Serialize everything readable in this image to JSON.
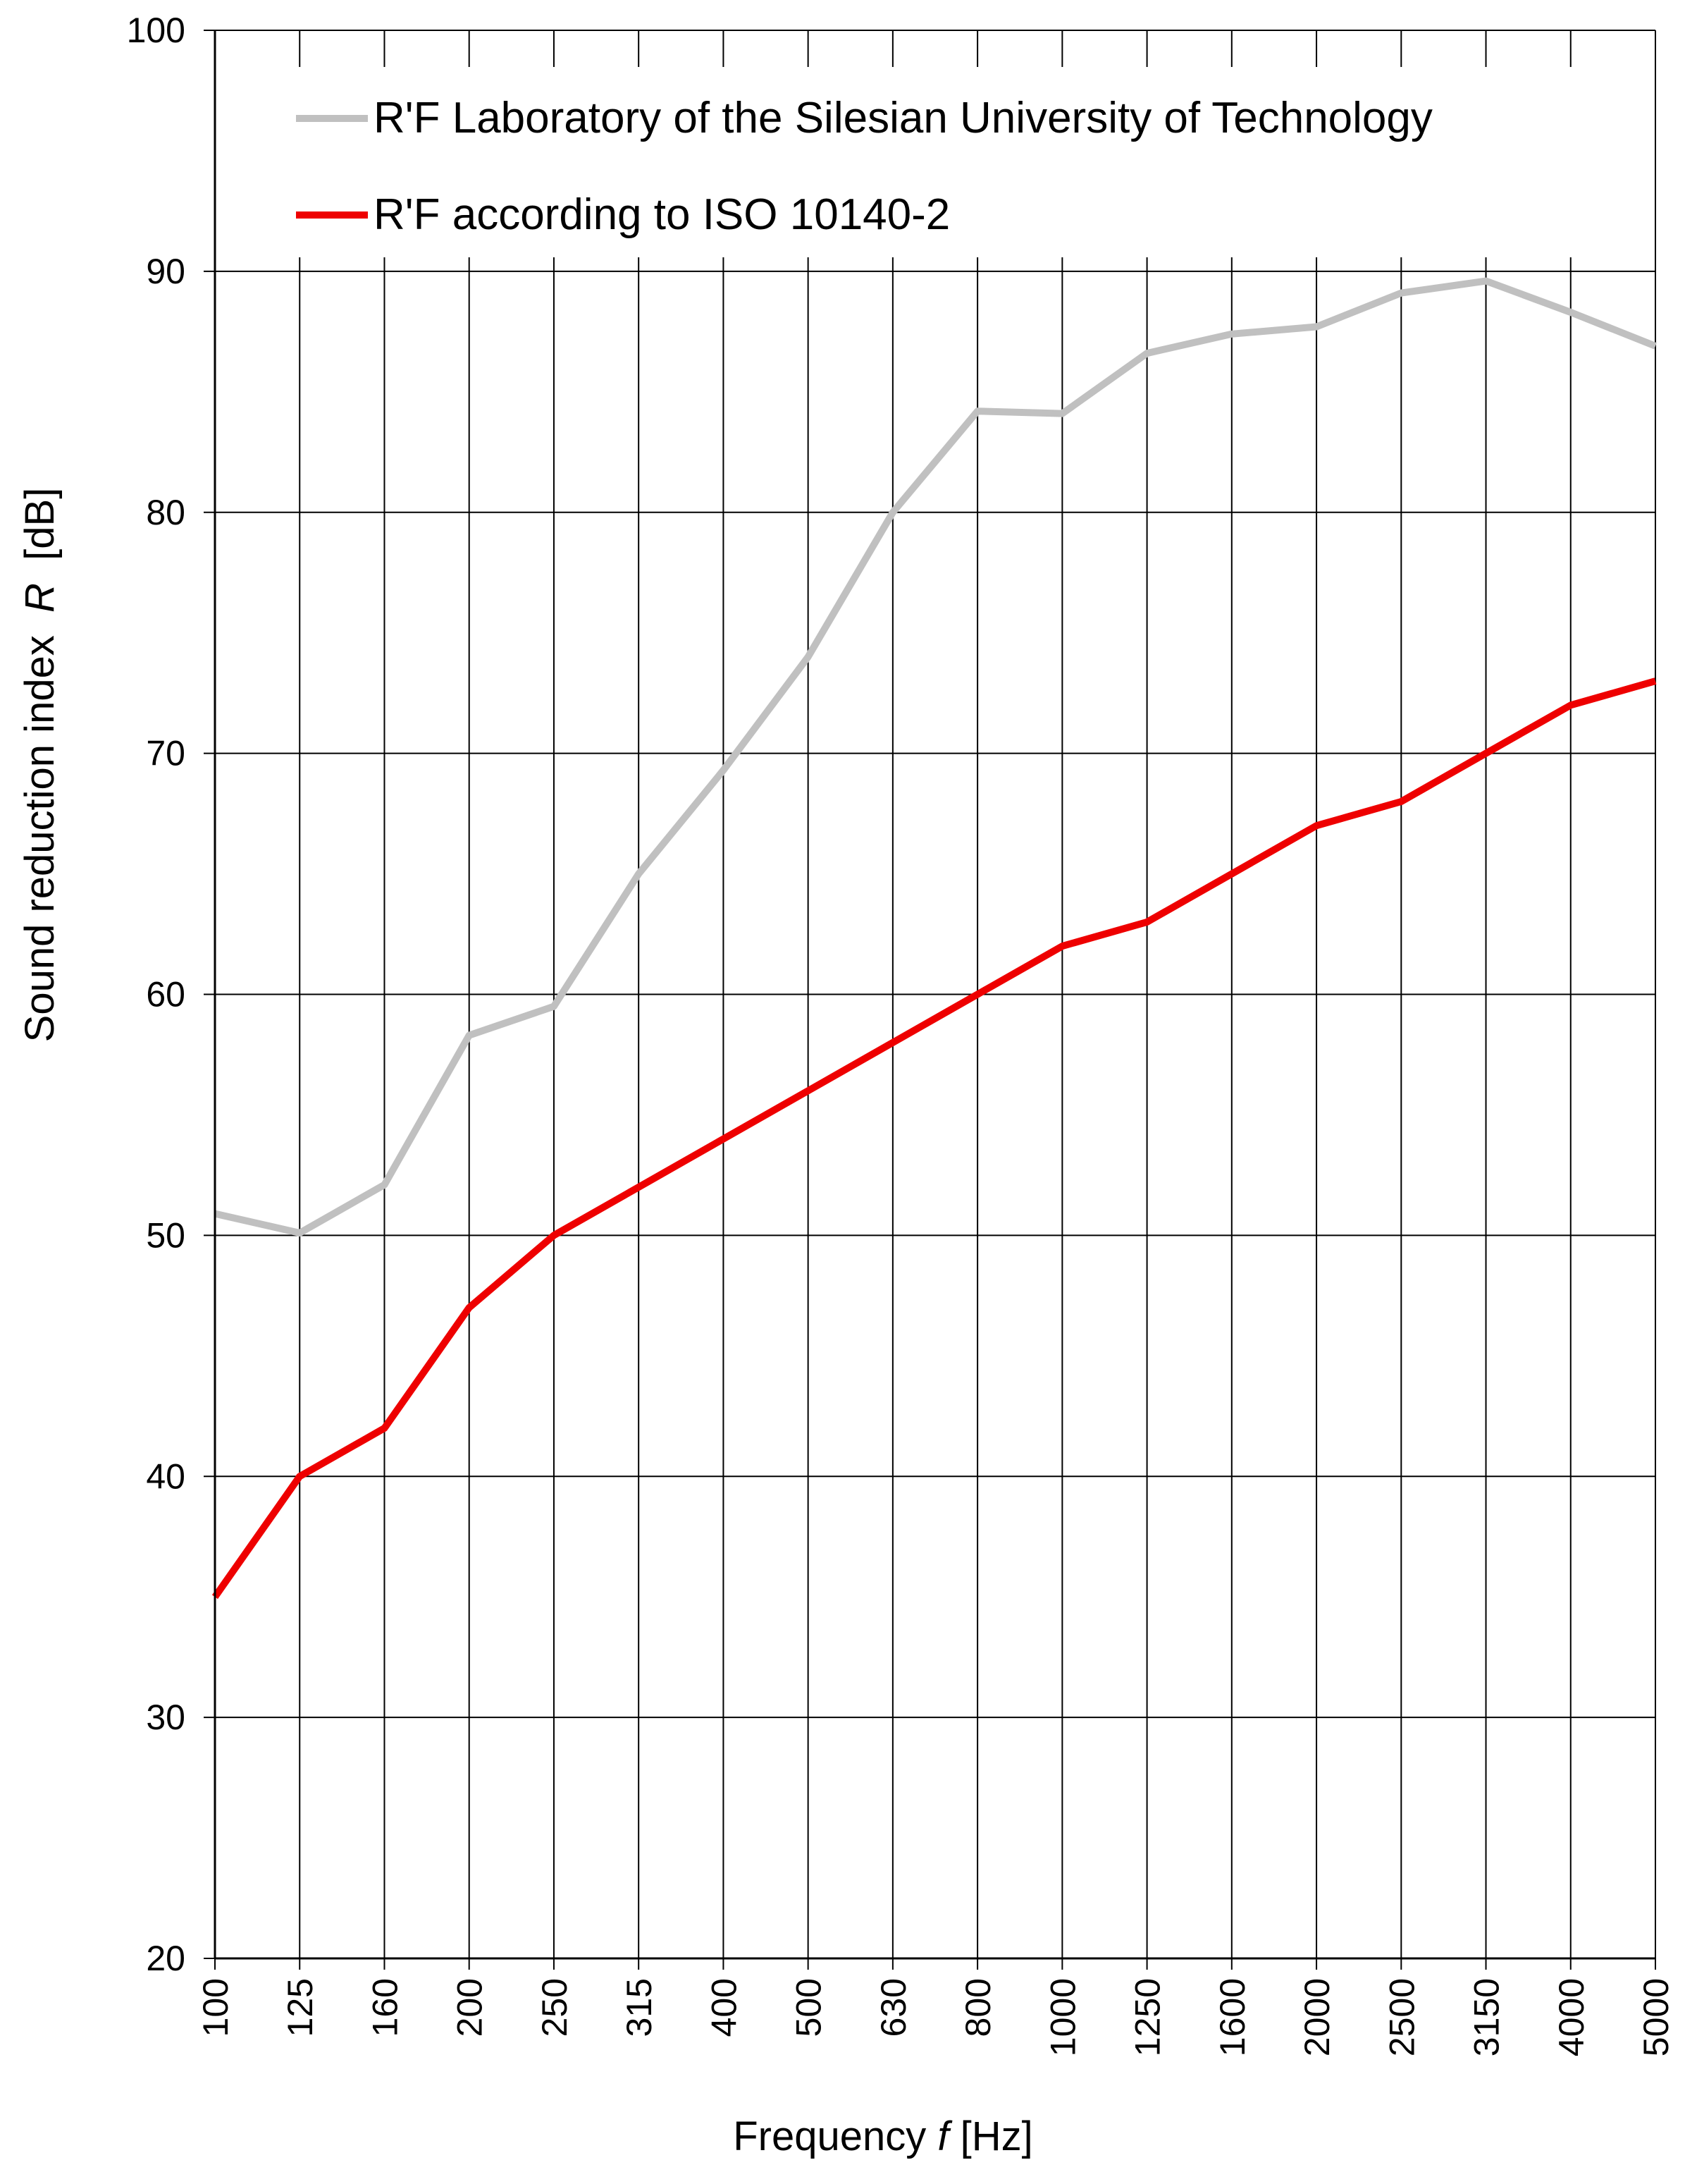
{
  "chart_data": {
    "type": "line",
    "title": "",
    "xlabel_parts": [
      "Frequency ",
      "f",
      " [Hz]"
    ],
    "ylabel_parts": [
      "Sound reduction index  ",
      "R",
      "  [dB]"
    ],
    "categories": [
      "100",
      "125",
      "160",
      "200",
      "250",
      "315",
      "400",
      "500",
      "630",
      "800",
      "1000",
      "1250",
      "1600",
      "2000",
      "2500",
      "3150",
      "4000",
      "5000"
    ],
    "ylim": [
      20,
      100
    ],
    "yticks": [
      "20",
      "30",
      "40",
      "50",
      "60",
      "70",
      "80",
      "90",
      "100"
    ],
    "grid": true,
    "legend_position": "top-left inside",
    "series": [
      {
        "name": "R'F Laboratory of the Silesian University of Technology",
        "color": "#c0c0c0",
        "values": [
          50.9,
          50.1,
          52.1,
          58.3,
          59.5,
          65.0,
          69.3,
          74.0,
          80.0,
          84.2,
          84.1,
          86.6,
          87.4,
          87.7,
          89.1,
          89.6,
          88.3,
          86.9
        ]
      },
      {
        "name": "R'F according to ISO 10140-2",
        "color": "#ee0000",
        "values": [
          35.0,
          40.0,
          42.0,
          47.0,
          50.0,
          52.0,
          54.0,
          56.0,
          58.0,
          60.0,
          62.0,
          63.0,
          65.0,
          67.0,
          68.0,
          70.0,
          72.0,
          73.0
        ]
      }
    ]
  }
}
